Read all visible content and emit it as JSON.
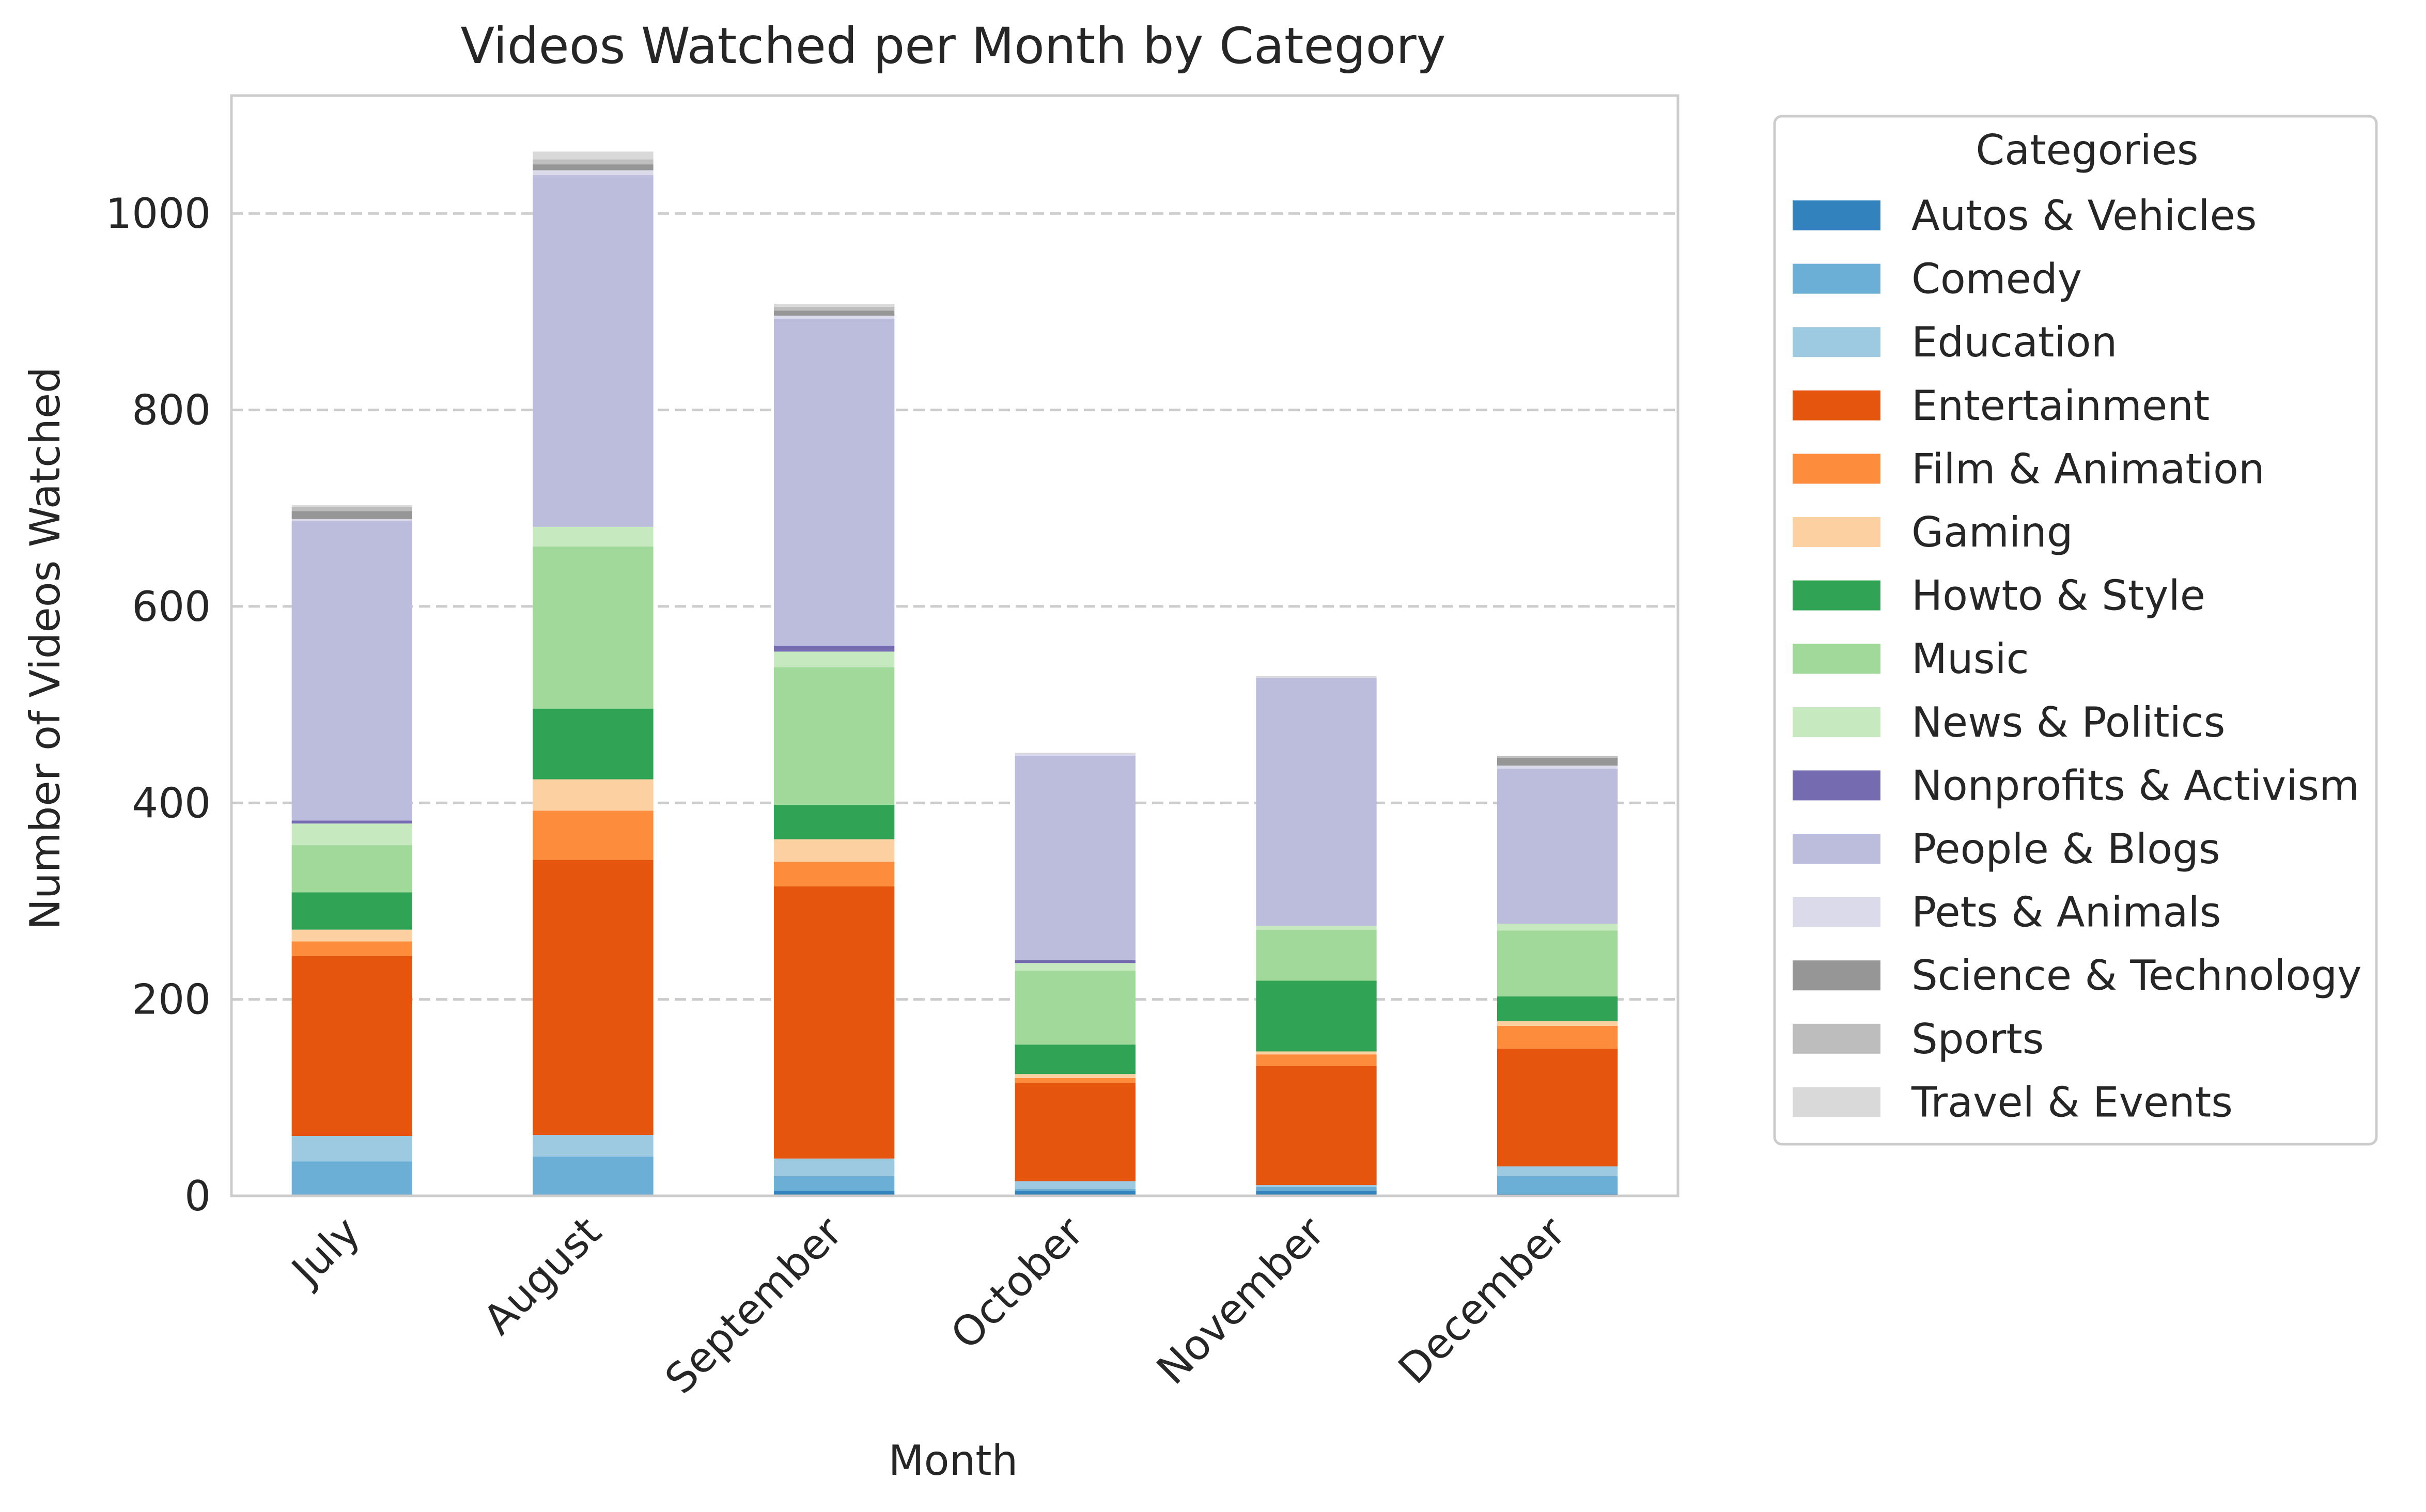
{
  "chart_data": {
    "type": "bar",
    "stacked": true,
    "title": "Videos Watched per Month by Category",
    "xlabel": "Month",
    "ylabel": "Number of Videos Watched",
    "categories": [
      "July",
      "August",
      "September",
      "October",
      "November",
      "December"
    ],
    "ylim": [
      0,
      1120
    ],
    "yticks": [
      0,
      200,
      400,
      600,
      800,
      1000
    ],
    "grid": "horizontal dashed",
    "legend": {
      "title": "Categories",
      "position": "outside right"
    },
    "series": [
      {
        "name": "Autos & Vehicles",
        "color": "#3182bd",
        "values": [
          0,
          0,
          5,
          5,
          5,
          2
        ]
      },
      {
        "name": "Comedy",
        "color": "#6baed6",
        "values": [
          35,
          40,
          15,
          2,
          4,
          18
        ]
      },
      {
        "name": "Education",
        "color": "#9ecae1",
        "values": [
          26,
          22,
          18,
          8,
          2,
          10
        ]
      },
      {
        "name": "Entertainment",
        "color": "#e6550d",
        "values": [
          183,
          280,
          277,
          100,
          121,
          120
        ]
      },
      {
        "name": "Film & Animation",
        "color": "#fd8d3c",
        "values": [
          15,
          50,
          25,
          5,
          12,
          23
        ]
      },
      {
        "name": "Gaming",
        "color": "#fdd0a2",
        "values": [
          12,
          32,
          23,
          4,
          3,
          5
        ]
      },
      {
        "name": "Howto & Style",
        "color": "#31a354",
        "values": [
          38,
          72,
          35,
          30,
          72,
          25
        ]
      },
      {
        "name": "Music",
        "color": "#a1d99b",
        "values": [
          48,
          165,
          140,
          75,
          52,
          67
        ]
      },
      {
        "name": "News & Politics",
        "color": "#c7e9c0",
        "values": [
          22,
          20,
          16,
          8,
          4,
          7
        ]
      },
      {
        "name": "Nonprofits & Activism",
        "color": "#756bb1",
        "values": [
          3,
          0,
          6,
          3,
          0,
          0
        ]
      },
      {
        "name": "People & Blogs",
        "color": "#bcbddc",
        "values": [
          305,
          358,
          333,
          208,
          252,
          158
        ]
      },
      {
        "name": "Pets & Animals",
        "color": "#dadaeb",
        "values": [
          2,
          5,
          3,
          2,
          1,
          3
        ]
      },
      {
        "name": "Science & Technology",
        "color": "#969696",
        "values": [
          8,
          6,
          5,
          0,
          0,
          8
        ]
      },
      {
        "name": "Sports",
        "color": "#bdbdbd",
        "values": [
          4,
          5,
          4,
          0,
          0,
          2
        ]
      },
      {
        "name": "Travel & Events",
        "color": "#d9d9d9",
        "values": [
          2,
          8,
          3,
          1,
          1,
          0
        ]
      }
    ]
  }
}
